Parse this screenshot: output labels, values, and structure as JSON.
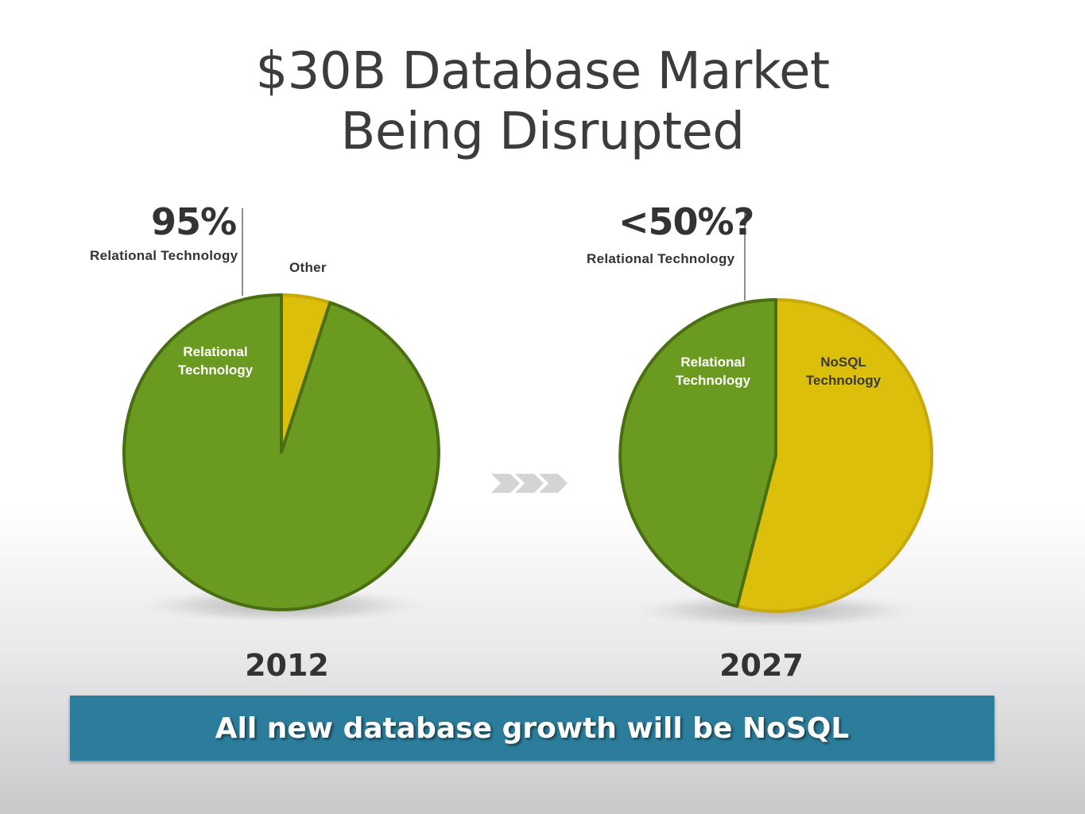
{
  "slide": {
    "title_line1": "$30B Database Market",
    "title_line2": "Being Disrupted",
    "banner": "All new database growth will be NoSQL"
  },
  "colors": {
    "relational": "#6b9a20",
    "nosql": "#dcbf0a",
    "banner": "#2b7d9b"
  },
  "arrow_icon": "triple-chevron-right",
  "chart_data": [
    {
      "type": "pie",
      "year": "2012",
      "callout_value": "95%",
      "callout_label": "Relational Technology",
      "slices": [
        {
          "label": "Relational Technology",
          "value": 95,
          "color": "#6b9a20"
        },
        {
          "label": "Other",
          "value": 5,
          "color": "#dcbf0a"
        }
      ]
    },
    {
      "type": "pie",
      "year": "2027",
      "callout_value": "<50%?",
      "callout_label": "Relational Technology",
      "slices": [
        {
          "label": "Relational Technology",
          "value": 46,
          "color": "#6b9a20"
        },
        {
          "label": "NoSQL Technology",
          "value": 54,
          "color": "#dcbf0a"
        }
      ]
    }
  ],
  "labels": {
    "pie1_relational": "Relational Technology",
    "pie1_other": "Other",
    "pie2_relational": "Relational Technology",
    "pie2_nosql": "NoSQL Technology"
  }
}
